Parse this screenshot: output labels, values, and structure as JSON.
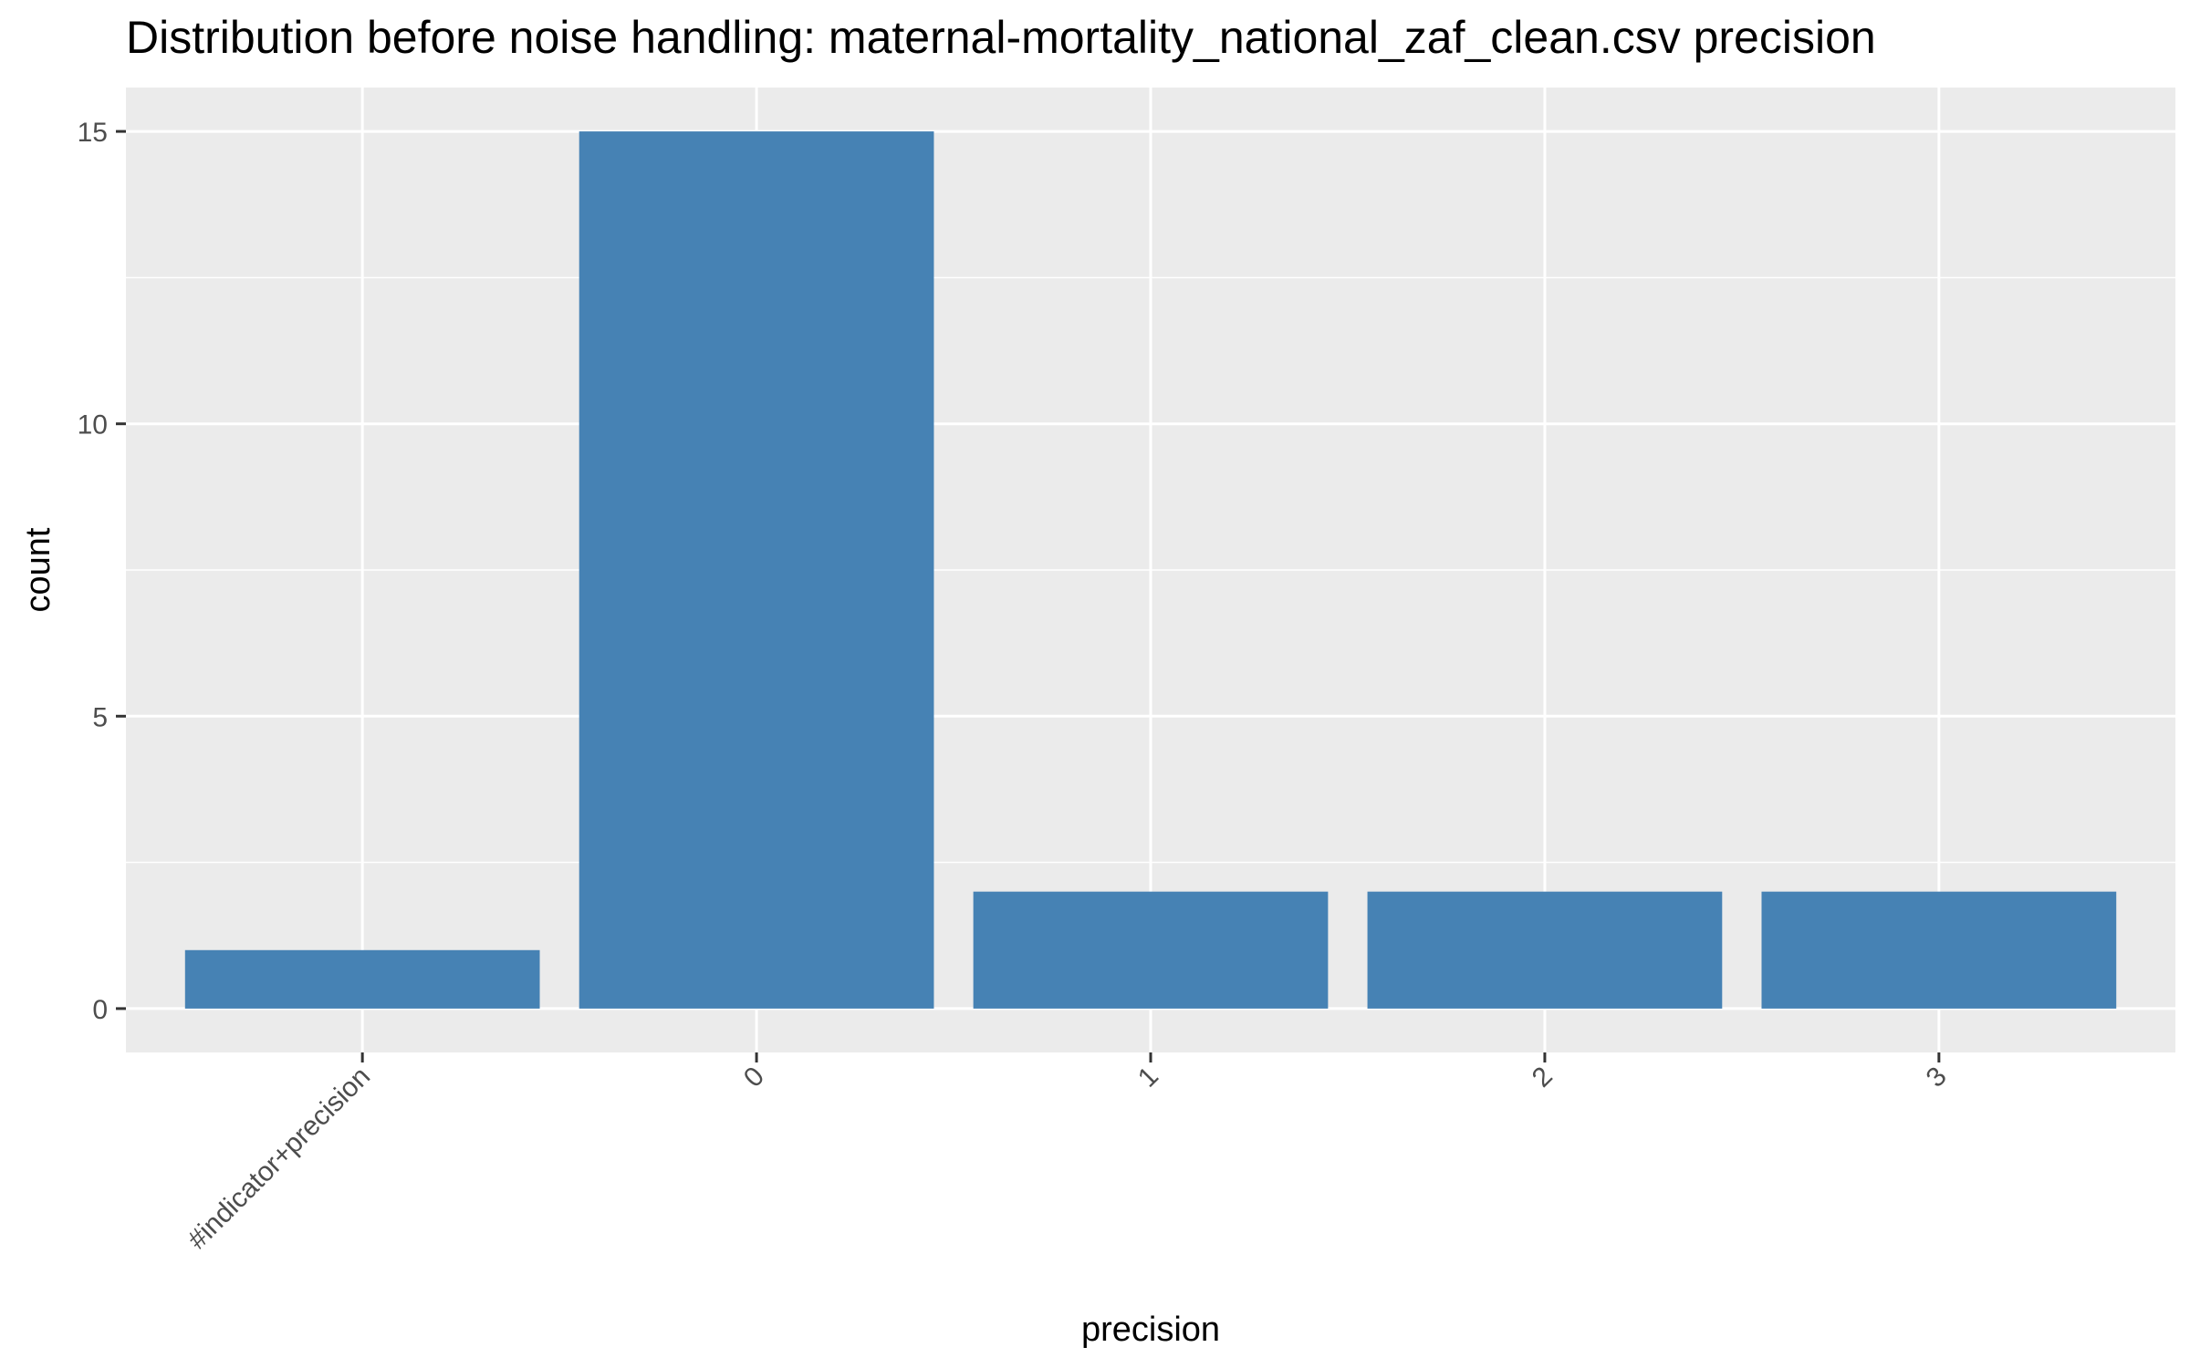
{
  "chart_data": {
    "type": "bar",
    "title": "Distribution before noise handling: maternal-mortality_national_zaf_clean.csv precision",
    "xlabel": "precision",
    "ylabel": "count",
    "categories": [
      "#indicator+precision",
      "0",
      "1",
      "2",
      "3"
    ],
    "values": [
      1,
      15,
      2,
      2,
      2
    ],
    "ylim": [
      -0.75,
      15.75
    ],
    "yticks": [
      0,
      5,
      10,
      15
    ],
    "grid": true,
    "legend": "none",
    "bar_color": "#4682B4",
    "panel_color": "#EBEBEB",
    "grid_color": "#FFFFFF"
  }
}
